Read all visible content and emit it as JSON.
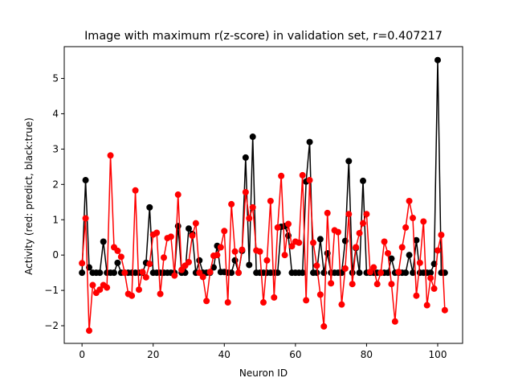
{
  "chart_data": {
    "type": "line",
    "title": "Image with maximum r(z-score) in validation set, r=0.407217",
    "xlabel": "Neuron ID",
    "ylabel": "Activity (red: predict, black:true)",
    "xlim": [
      -5,
      107
    ],
    "ylim": [
      -2.5,
      5.9
    ],
    "xticks": [
      0,
      20,
      40,
      60,
      80,
      100
    ],
    "yticks": [
      -2,
      -1,
      0,
      1,
      2,
      3,
      4,
      5
    ],
    "grid": false,
    "legend": "none",
    "x": [
      0,
      1,
      2,
      3,
      4,
      5,
      6,
      7,
      8,
      9,
      10,
      11,
      12,
      13,
      14,
      15,
      16,
      17,
      18,
      19,
      20,
      21,
      22,
      23,
      24,
      25,
      26,
      27,
      28,
      29,
      30,
      31,
      32,
      33,
      34,
      35,
      36,
      37,
      38,
      39,
      40,
      41,
      42,
      43,
      44,
      45,
      46,
      47,
      48,
      49,
      50,
      51,
      52,
      53,
      54,
      55,
      56,
      57,
      58,
      59,
      60,
      61,
      62,
      63,
      64,
      65,
      66,
      67,
      68,
      69,
      70,
      71,
      72,
      73,
      74,
      75,
      76,
      77,
      78,
      79,
      80,
      81,
      82,
      83,
      84,
      85,
      86,
      87,
      88,
      89,
      90,
      91,
      92,
      93,
      94,
      95,
      96,
      97,
      98,
      99,
      100,
      101,
      102
    ],
    "series": [
      {
        "name": "true",
        "color": "#000000",
        "values": [
          -0.5,
          2.12,
          -0.35,
          -0.5,
          -0.5,
          -0.5,
          0.38,
          -0.5,
          -0.5,
          -0.5,
          -0.22,
          -0.5,
          -0.5,
          -0.5,
          -0.5,
          -0.5,
          -0.5,
          -0.5,
          -0.22,
          1.35,
          -0.5,
          -0.5,
          -0.5,
          -0.5,
          -0.5,
          -0.5,
          -0.5,
          0.82,
          -0.5,
          -0.5,
          0.75,
          0.6,
          -0.5,
          -0.15,
          -0.5,
          -0.5,
          -0.5,
          -0.35,
          0.26,
          -0.48,
          -0.48,
          -0.5,
          -0.5,
          -0.15,
          -0.5,
          0.12,
          2.76,
          -0.28,
          3.35,
          -0.5,
          -0.5,
          -0.5,
          -0.5,
          -0.5,
          -0.5,
          -0.5,
          0.8,
          0.82,
          0.55,
          -0.5,
          -0.5,
          -0.5,
          -0.5,
          2.08,
          3.2,
          -0.5,
          -0.5,
          0.45,
          -0.5,
          0.05,
          -0.5,
          -0.5,
          -0.5,
          -0.5,
          0.4,
          2.66,
          -0.5,
          0.2,
          -0.5,
          2.1,
          -0.5,
          -0.5,
          -0.5,
          -0.5,
          -0.5,
          -0.5,
          -0.5,
          -0.1,
          -0.5,
          -0.5,
          -0.5,
          -0.5,
          0.0,
          -0.5,
          0.42,
          -0.5,
          -0.5,
          -0.5,
          -0.5,
          -0.25,
          5.52,
          -0.5,
          -0.5
        ]
      },
      {
        "name": "predict",
        "color": "#ff0000",
        "values": [
          -0.23,
          1.04,
          -2.14,
          -0.85,
          -1.07,
          -0.98,
          -0.85,
          -0.92,
          2.82,
          0.22,
          0.12,
          -0.05,
          -0.5,
          -1.1,
          -1.15,
          1.83,
          -0.98,
          -0.48,
          -0.63,
          -0.25,
          0.58,
          0.63,
          -1.1,
          -0.07,
          0.48,
          0.52,
          -0.58,
          1.71,
          -0.42,
          -0.3,
          -0.2,
          0.55,
          0.9,
          -0.5,
          -0.62,
          -1.3,
          -0.48,
          -0.02,
          0.0,
          0.22,
          0.68,
          -1.34,
          1.44,
          0.1,
          -0.5,
          0.15,
          1.78,
          1.04,
          1.35,
          0.13,
          0.1,
          -1.34,
          -0.15,
          1.53,
          -1.2,
          0.78,
          2.24,
          0.0,
          0.88,
          0.25,
          0.38,
          0.35,
          2.26,
          -1.28,
          2.12,
          0.35,
          -0.3,
          -1.12,
          -2.02,
          1.19,
          -0.8,
          0.7,
          0.65,
          -1.4,
          -0.38,
          1.16,
          -0.82,
          0.22,
          0.62,
          0.9,
          1.16,
          -0.48,
          -0.35,
          -0.82,
          -0.5,
          0.38,
          0.05,
          -0.82,
          -1.88,
          -0.48,
          0.22,
          0.78,
          1.53,
          1.05,
          -1.15,
          -0.22,
          0.95,
          -1.42,
          -0.65,
          -0.95,
          0.13,
          0.57,
          -1.56
        ]
      }
    ]
  }
}
